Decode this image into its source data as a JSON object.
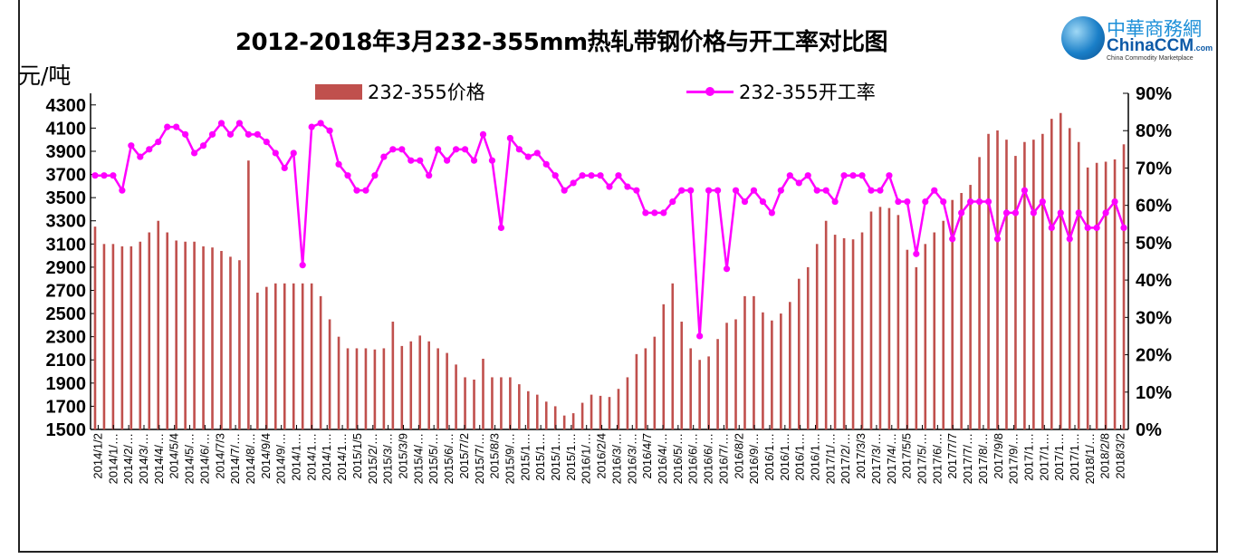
{
  "chart_data": {
    "type": "bar+line",
    "title": "2012-2018年3月232-355mm热轧带钢价格与开工率对比图",
    "ylabel": "元/吨",
    "ylim": [
      1500,
      4400
    ],
    "y_ticks": [
      "4300",
      "4100",
      "3900",
      "3700",
      "3500",
      "3300",
      "3100",
      "2900",
      "2700",
      "2500",
      "2300",
      "2100",
      "1900",
      "1700",
      "1500"
    ],
    "y2lim": [
      0,
      90
    ],
    "y2_ticks": [
      "90%",
      "80%",
      "70%",
      "60%",
      "50%",
      "40%",
      "30%",
      "20%",
      "10%",
      "0%"
    ],
    "legend": {
      "placement": "top",
      "bar": "232-355价格",
      "line": "232-355开工率"
    },
    "colors": {
      "bar": "#c0504d",
      "line": "#ff00ff"
    },
    "x_tick_labels": [
      "2014/1/2",
      "2014/1/…",
      "2014/2/…",
      "2014/3/…",
      "2014/4/…",
      "2014/5/4",
      "2014/5/…",
      "2014/6/…",
      "2014/7/3",
      "2014/7/…",
      "2014/8/…",
      "2014/9/4",
      "2014/9/…",
      "2014/1…",
      "2014/1…",
      "2014/1…",
      "2014/1…",
      "2015/1/5",
      "2015/2/…",
      "2015/3/…",
      "2015/3/9",
      "2015/4/…",
      "2015/5/…",
      "2015/6/…",
      "2015/7/2",
      "2015/7/…",
      "2015/8/3",
      "2015/9/…",
      "2015/1…",
      "2015/1…",
      "2015/1…",
      "2015/1…",
      "2016/1/…",
      "2016/2/4",
      "2016/3/…",
      "2016/3/…",
      "2016/4/7",
      "2016/4/…",
      "2016/5/…",
      "2016/6/…",
      "2016/6/…",
      "2016/7/…",
      "2016/8/2",
      "2016/9/…",
      "2016/1…",
      "2016/1…",
      "2016/1…",
      "2016/1…",
      "2017/1/…",
      "2017/2/…",
      "2017/3/3",
      "2017/3/…",
      "2017/4/…",
      "2017/5/5",
      "2017/5/…",
      "2017/6/…",
      "2017/7/7",
      "2017/7/…",
      "2017/8/…",
      "2017/9/8",
      "2017/9/…",
      "2017/1…",
      "2017/1…",
      "2017/1…",
      "2017/1…",
      "2018/1/…",
      "2018/2/8",
      "2018/3/2"
    ],
    "series": [
      {
        "name": "232-355价格",
        "type": "bar",
        "values": [
          3250,
          3100,
          3100,
          3080,
          3080,
          3120,
          3200,
          3300,
          3200,
          3130,
          3120,
          3120,
          3080,
          3070,
          3040,
          2990,
          2960,
          3820,
          2680,
          2730,
          2760,
          2760,
          2760,
          2760,
          2760,
          2650,
          2450,
          2300,
          2200,
          2200,
          2200,
          2190,
          2200,
          2430,
          2220,
          2260,
          2310,
          2260,
          2200,
          2160,
          2060,
          1950,
          1930,
          2110,
          1950,
          1950,
          1950,
          1890,
          1830,
          1800,
          1740,
          1700,
          1620,
          1640,
          1730,
          1800,
          1790,
          1780,
          1850,
          1950,
          2150,
          2200,
          2300,
          2580,
          2760,
          2430,
          2200,
          2100,
          2130,
          2280,
          2420,
          2450,
          2650,
          2650,
          2510,
          2440,
          2500,
          2600,
          2800,
          2900,
          3100,
          3300,
          3180,
          3150,
          3140,
          3200,
          3380,
          3420,
          3410,
          3350,
          3050,
          2900,
          3100,
          3200,
          3300,
          3480,
          3540,
          3610,
          3850,
          4050,
          4080,
          4000,
          3860,
          3980,
          4000,
          4050,
          4180,
          4230,
          4100,
          3980,
          3760,
          3800,
          3810,
          3830,
          3960
        ]
      },
      {
        "name": "232-355开工率",
        "type": "line",
        "axis": "right",
        "values": [
          68,
          68,
          68,
          64,
          76,
          73,
          75,
          77,
          81,
          81,
          79,
          74,
          76,
          79,
          82,
          79,
          82,
          79,
          79,
          77,
          74,
          70,
          74,
          44,
          81,
          82,
          80,
          71,
          68,
          64,
          64,
          68,
          73,
          75,
          75,
          72,
          72,
          68,
          75,
          72,
          75,
          75,
          72,
          79,
          72,
          54,
          78,
          75,
          73,
          74,
          71,
          68,
          64,
          66,
          68,
          68,
          68,
          65,
          68,
          65,
          64,
          58,
          58,
          58,
          61,
          64,
          64,
          25,
          64,
          64,
          43,
          64,
          61,
          64,
          61,
          58,
          64,
          68,
          66,
          68,
          64,
          64,
          61,
          68,
          68,
          68,
          64,
          64,
          68,
          61,
          61,
          47,
          61,
          64,
          61,
          51,
          58,
          61,
          61,
          61,
          51,
          58,
          58,
          64,
          58,
          61,
          54,
          58,
          51,
          58,
          54,
          54,
          58,
          61,
          54
        ]
      }
    ]
  },
  "logo": {
    "cn": "中華商務網",
    "en": "ChinaCCM",
    "dotcom": ".com",
    "sub": "China Commodity Marketplace"
  }
}
